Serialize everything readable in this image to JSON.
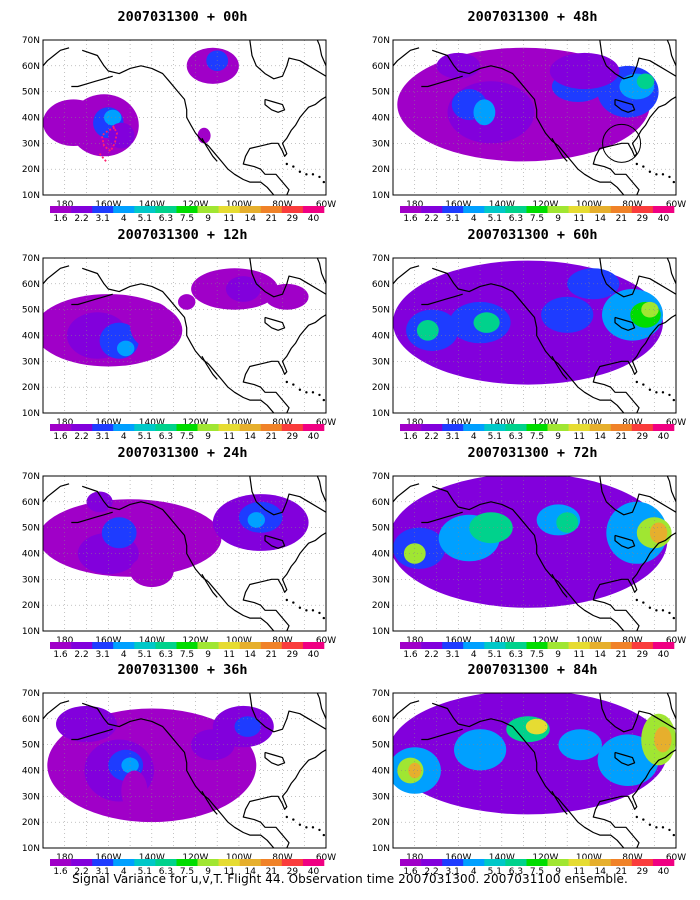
{
  "colorbar": {
    "colors": [
      "#a000c8",
      "#8200dc",
      "#1e3cff",
      "#00a0ff",
      "#00c8c8",
      "#00d28c",
      "#00dc00",
      "#a0e632",
      "#e6dc32",
      "#e6af2d",
      "#f08228",
      "#fa3c3c",
      "#f00082"
    ],
    "labels": [
      "1.6",
      "2.2",
      "3.1",
      "4",
      "5.1",
      "6.3",
      "7.5",
      "9",
      "11",
      "14",
      "21",
      "29",
      "40"
    ]
  },
  "axes": {
    "lat_labels": [
      "70N",
      "60N",
      "50N",
      "40N",
      "30N",
      "20N",
      "10N"
    ],
    "lon_labels": [
      "180",
      "160W",
      "140W",
      "120W",
      "100W",
      "80W",
      "60W"
    ]
  },
  "panels": [
    {
      "title": "2007031300 + 00h",
      "level": 0,
      "marker": "dotted-track"
    },
    {
      "title": "2007031300 + 12h",
      "level": 1
    },
    {
      "title": "2007031300 + 24h",
      "level": 2
    },
    {
      "title": "2007031300 + 36h",
      "level": 3
    },
    {
      "title": "2007031300 + 48h",
      "level": 4,
      "marker": "circle"
    },
    {
      "title": "2007031300 + 60h",
      "level": 5
    },
    {
      "title": "2007031300 + 72h",
      "level": 6
    },
    {
      "title": "2007031300 + 84h",
      "level": 7
    }
  ],
  "footer": "Signal Variance for u,v,T. Flight 44. Observation time 2007031300. 2007031100 ensemble."
}
